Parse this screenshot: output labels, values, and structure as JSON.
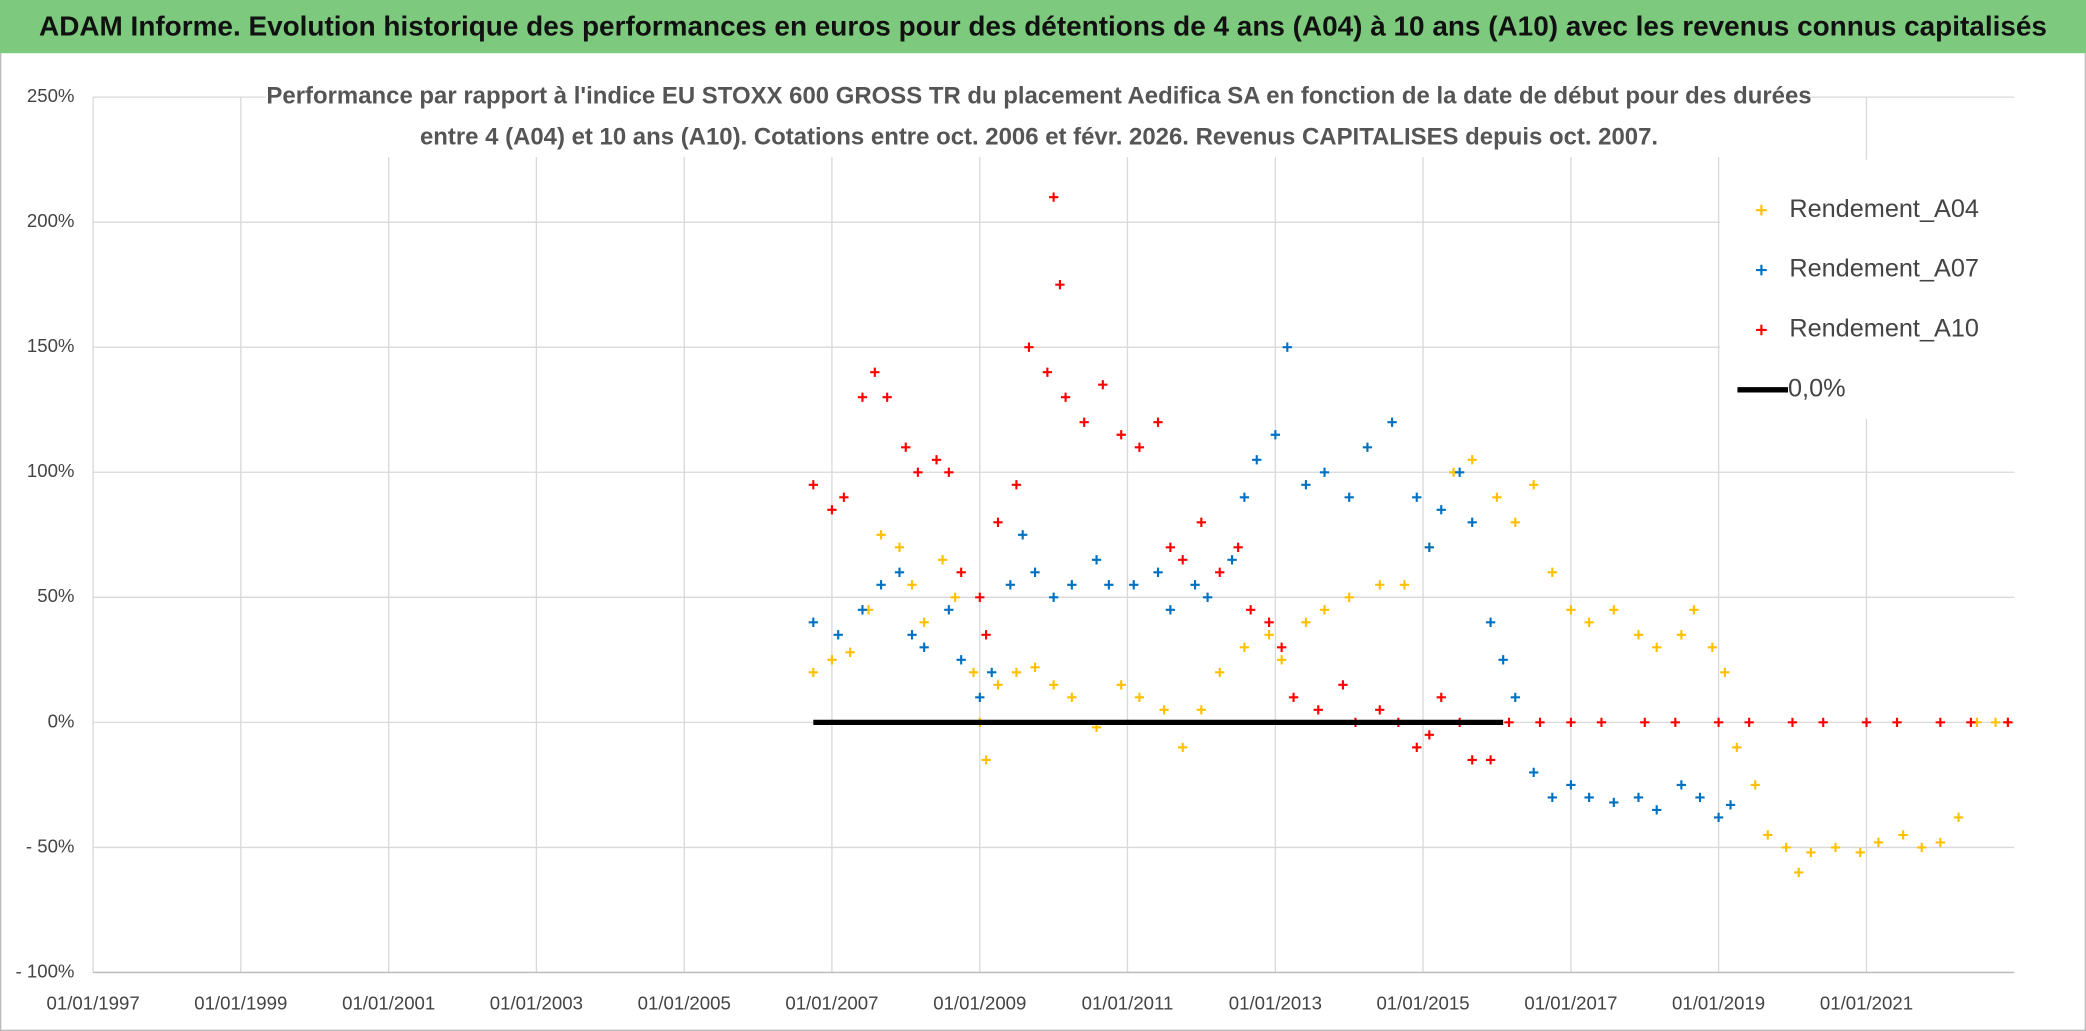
{
  "chart_data": {
    "type": "scatter",
    "title": "ADAM Informe. Evolution historique des performances en euros pour des détentions de 4 ans (A04) à 10 ans (A10) avec les revenus connus capitalisés",
    "subtitle": [
      "Performance par rapport à l'indice EU STOXX 600 GROSS TR  du placement Aedifica SA en fonction de la date de début pour des durées",
      "entre 4 (A04) et 10 ans (A10). Cotations entre oct. 2006 et févr. 2026. Revenus CAPITALISES depuis oct. 2007."
    ],
    "xlim": [
      "1997-01-01",
      "2023-01-01"
    ],
    "xticks": [
      {
        "value": "1997-01-01",
        "label": "01/01/1997"
      },
      {
        "value": "1999-01-01",
        "label": "01/01/1999"
      },
      {
        "value": "2001-01-01",
        "label": "01/01/2001"
      },
      {
        "value": "2003-01-01",
        "label": "01/01/2003"
      },
      {
        "value": "2005-01-01",
        "label": "01/01/2005"
      },
      {
        "value": "2007-01-01",
        "label": "01/01/2007"
      },
      {
        "value": "2009-01-01",
        "label": "01/01/2009"
      },
      {
        "value": "2011-01-01",
        "label": "01/01/2011"
      },
      {
        "value": "2013-01-01",
        "label": "01/01/2013"
      },
      {
        "value": "2015-01-01",
        "label": "01/01/2015"
      },
      {
        "value": "2017-01-01",
        "label": "01/01/2017"
      },
      {
        "value": "2019-01-01",
        "label": "01/01/2019"
      },
      {
        "value": "2021-01-01",
        "label": "01/01/2021"
      }
    ],
    "ylim": [
      -100,
      250
    ],
    "yticks": [
      {
        "value": -100,
        "label": "- 100%"
      },
      {
        "value": -50,
        "label": "- 50%"
      },
      {
        "value": 0,
        "label": "0%"
      },
      {
        "value": 50,
        "label": "50%"
      },
      {
        "value": 100,
        "label": "100%"
      },
      {
        "value": 150,
        "label": "150%"
      },
      {
        "value": 200,
        "label": "200%"
      },
      {
        "value": 250,
        "label": "250%"
      }
    ],
    "grid": true,
    "legend": "upper right",
    "series": [
      {
        "name": "Rendement_A04",
        "color": "#ffc000",
        "x": [
          "2006-10-01",
          "2007-01-01",
          "2007-04-01",
          "2007-07-01",
          "2007-09-01",
          "2007-12-01",
          "2008-02-01",
          "2008-04-01",
          "2008-07-01",
          "2008-09-01",
          "2008-12-01",
          "2009-01-01",
          "2009-02-01",
          "2009-04-01",
          "2009-07-01",
          "2009-10-01",
          "2010-01-01",
          "2010-04-01",
          "2010-08-01",
          "2010-12-01",
          "2011-03-01",
          "2011-07-01",
          "2011-10-01",
          "2012-01-01",
          "2012-04-01",
          "2012-08-01",
          "2012-12-01",
          "2013-02-01",
          "2013-06-01",
          "2013-09-01",
          "2014-01-01",
          "2014-06-01",
          "2014-10-01",
          "2015-02-01",
          "2015-06-01",
          "2015-09-01",
          "2016-01-01",
          "2016-04-01",
          "2016-07-01",
          "2016-10-01",
          "2017-01-01",
          "2017-04-01",
          "2017-08-01",
          "2017-12-01",
          "2018-03-01",
          "2018-07-01",
          "2018-09-01",
          "2018-12-01",
          "2019-02-01",
          "2019-04-01",
          "2019-07-01",
          "2019-09-01",
          "2019-12-01",
          "2020-02-01",
          "2020-04-01",
          "2020-08-01",
          "2020-12-01",
          "2021-03-01",
          "2021-07-01",
          "2021-10-01",
          "2022-01-01",
          "2022-04-01",
          "2022-07-01",
          "2022-10-01",
          "2022-12-01"
        ],
        "values": [
          20,
          25,
          28,
          45,
          75,
          70,
          55,
          40,
          65,
          50,
          20,
          0,
          -15,
          15,
          20,
          22,
          15,
          10,
          -2,
          15,
          10,
          5,
          -10,
          5,
          20,
          30,
          35,
          25,
          40,
          45,
          50,
          55,
          55,
          70,
          100,
          105,
          90,
          80,
          95,
          60,
          45,
          40,
          45,
          35,
          30,
          35,
          45,
          30,
          20,
          -10,
          -25,
          -45,
          -50,
          -60,
          -52,
          -50,
          -52,
          -48,
          -45,
          -50,
          -48,
          -38,
          0,
          0,
          0
        ]
      },
      {
        "name": "Rendement_A07",
        "color": "#0070c0",
        "x": [
          "2006-10-01",
          "2007-02-01",
          "2007-06-01",
          "2007-09-01",
          "2007-12-01",
          "2008-02-01",
          "2008-04-01",
          "2008-08-01",
          "2008-10-01",
          "2009-01-01",
          "2009-03-01",
          "2009-06-01",
          "2009-08-01",
          "2009-10-01",
          "2010-01-01",
          "2010-04-01",
          "2010-08-01",
          "2010-10-01",
          "2011-02-01",
          "2011-06-01",
          "2011-08-01",
          "2011-12-01",
          "2012-02-01",
          "2012-06-01",
          "2012-08-01",
          "2012-10-01",
          "2013-01-01",
          "2013-03-01",
          "2013-06-01",
          "2013-09-01",
          "2014-01-01",
          "2014-04-01",
          "2014-08-01",
          "2014-12-01",
          "2015-02-01",
          "2015-04-01",
          "2015-07-01",
          "2015-09-01",
          "2015-12-01",
          "2016-02-01",
          "2016-04-01",
          "2016-07-01",
          "2016-10-01",
          "2017-01-01",
          "2017-04-01",
          "2017-08-01",
          "2017-12-01",
          "2018-03-01",
          "2018-07-01",
          "2018-10-01",
          "2019-01-01",
          "2019-03-01"
        ],
        "values": [
          40,
          35,
          45,
          55,
          60,
          35,
          30,
          45,
          25,
          10,
          20,
          55,
          75,
          60,
          50,
          55,
          65,
          55,
          55,
          60,
          45,
          55,
          50,
          65,
          90,
          105,
          115,
          150,
          95,
          100,
          90,
          110,
          120,
          90,
          70,
          85,
          100,
          80,
          40,
          25,
          10,
          -20,
          -30,
          -25,
          -30,
          -32,
          -30,
          -35,
          -25,
          -30,
          -38,
          -33
        ]
      },
      {
        "name": "Rendement_A10",
        "color": "#ff0000",
        "x": [
          "2006-10-01",
          "2007-01-01",
          "2007-03-01",
          "2007-06-01",
          "2007-08-01",
          "2007-10-01",
          "2008-01-01",
          "2008-03-01",
          "2008-06-01",
          "2008-08-01",
          "2008-10-01",
          "2009-01-01",
          "2009-02-01",
          "2009-04-01",
          "2009-07-01",
          "2009-09-01",
          "2009-12-01",
          "2010-01-01",
          "2010-02-01",
          "2010-03-01",
          "2010-06-01",
          "2010-09-01",
          "2010-12-01",
          "2011-03-01",
          "2011-06-01",
          "2011-08-01",
          "2011-10-01",
          "2012-01-01",
          "2012-04-01",
          "2012-07-01",
          "2012-09-01",
          "2012-12-01",
          "2013-02-01",
          "2013-04-01",
          "2013-08-01",
          "2013-12-01",
          "2014-02-01",
          "2014-06-01",
          "2014-09-01",
          "2014-12-01",
          "2015-02-01",
          "2015-04-01",
          "2015-07-01",
          "2015-09-01",
          "2015-12-01",
          "2016-03-01",
          "2016-08-01",
          "2017-01-01",
          "2017-06-01",
          "2018-01-01",
          "2018-06-01",
          "2019-01-01",
          "2019-06-01",
          "2020-01-01",
          "2020-06-01",
          "2021-01-01",
          "2021-06-01",
          "2022-01-01",
          "2022-06-01",
          "2022-12-01"
        ],
        "values": [
          95,
          85,
          90,
          130,
          140,
          130,
          110,
          100,
          105,
          100,
          60,
          50,
          35,
          80,
          95,
          150,
          140,
          210,
          175,
          130,
          120,
          135,
          115,
          110,
          120,
          70,
          65,
          80,
          60,
          70,
          45,
          40,
          30,
          10,
          5,
          15,
          0,
          5,
          0,
          -10,
          -5,
          10,
          0,
          -15,
          -15,
          0,
          0,
          0,
          0,
          0,
          0,
          0,
          0,
          0,
          0,
          0,
          0,
          0,
          0,
          0
        ]
      },
      {
        "name": "0,0%",
        "color": "#000000",
        "type": "line",
        "x": [
          "2006-10-01",
          "2016-02-01"
        ],
        "values": [
          0,
          0
        ]
      }
    ]
  }
}
